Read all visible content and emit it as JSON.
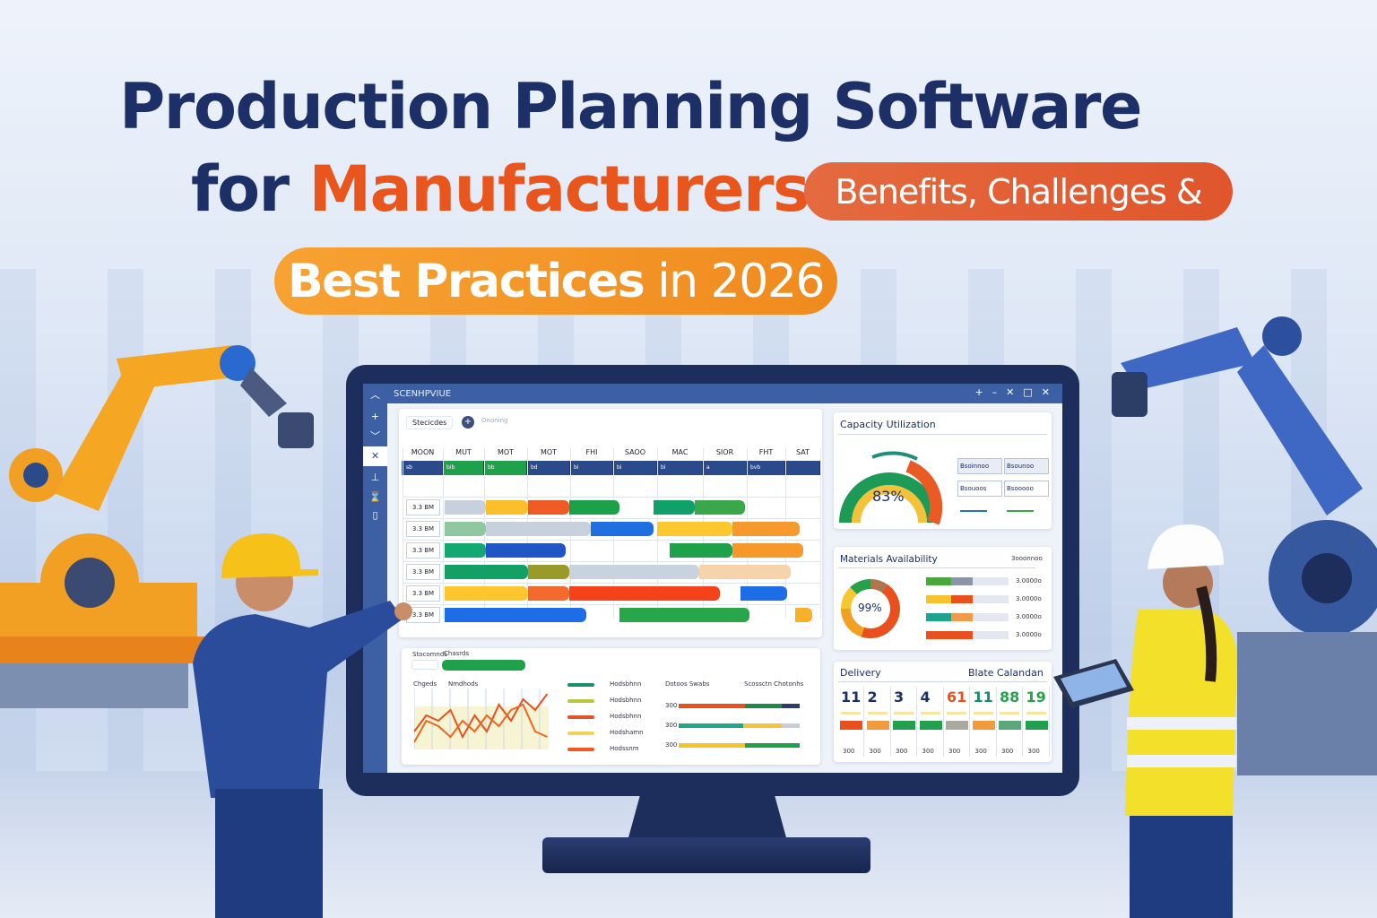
{
  "headline": {
    "line1": "Production Planning Software",
    "line2_prefix": "for ",
    "line2_accent": "Manufacturers",
    "pill1": "Benefits, Challenges &",
    "pill2_bold": "Best Practices",
    "pill2_rest": " in 2026"
  },
  "colors": {
    "navy": "#1c2f66",
    "accent_orange": "#e8561e",
    "pill_red": "#e2603a",
    "pill_orange": "#f39425",
    "window_blue": "#3d5fa3"
  },
  "app": {
    "title": "SCENHPVIUE",
    "window_controls": [
      "+",
      "–",
      "✕",
      "□",
      "✕"
    ],
    "sidebar_icons": [
      "chevron-up-icon",
      "plus-icon",
      "chevron-down-icon",
      "close-icon",
      "tool-icon",
      "hourglass-icon",
      "doc-icon"
    ],
    "toolbar": {
      "tab_label": "Stecicdes",
      "add_icon": "plus-icon",
      "filter_label": "Ononing"
    },
    "gantt": {
      "headers": [
        "MOON",
        "MUT",
        "MOT",
        "MOT",
        "FHI",
        "SAOO",
        "MAC",
        "SIOR",
        "FHT",
        "SAT"
      ],
      "header_row": [
        "sb",
        "bib",
        "bb",
        "bd",
        "bi",
        "bi",
        "bi",
        "a",
        "bvb",
        ""
      ],
      "rows": [
        {
          "label": "3.3 BM",
          "bars": [
            [
              1,
              2,
              "#c7d0dc"
            ],
            [
              2,
              3,
              "#fbbf2c"
            ],
            [
              3,
              4,
              "#f05a24"
            ],
            [
              4,
              5.2,
              "#1aa14a"
            ],
            [
              6,
              7,
              "#12a06a"
            ],
            [
              7,
              8.2,
              "#3aa84a"
            ]
          ]
        },
        {
          "label": "3.3 BM",
          "bars": [
            [
              1,
              2,
              "#8fc7a0"
            ],
            [
              2,
              4.5,
              "#c7d0dc"
            ],
            [
              4.5,
              6,
              "#1f6fe0"
            ],
            [
              6.1,
              7.9,
              "#fcc72f"
            ],
            [
              7.9,
              9.5,
              "#f79a2e"
            ]
          ]
        },
        {
          "label": "3.3 BM",
          "bars": [
            [
              1,
              2,
              "#13a772"
            ],
            [
              2,
              3.9,
              "#2154c4"
            ],
            [
              6.4,
              7.9,
              "#1fa04a"
            ],
            [
              7.9,
              9.6,
              "#f7982b"
            ]
          ]
        },
        {
          "label": "3.3 BM",
          "bars": [
            [
              1,
              3,
              "#13a064"
            ],
            [
              3,
              4,
              "#9a9a2a"
            ],
            [
              4,
              7.1,
              "#c9d3df"
            ],
            [
              7.1,
              9.3,
              "#f6d3aa"
            ]
          ]
        },
        {
          "label": "3.3 BM",
          "bars": [
            [
              1,
              3,
              "#fdc52e"
            ],
            [
              3,
              4,
              "#f26a2c"
            ],
            [
              4,
              7.6,
              "#f5421a"
            ],
            [
              8.1,
              9.2,
              "#1d6de6"
            ]
          ]
        },
        {
          "label": "3.3 BM",
          "bars": [
            [
              1,
              4.4,
              "#1d6de6"
            ],
            [
              5.2,
              8.3,
              "#27a64a"
            ],
            [
              9.4,
              9.8,
              "#f8b02a"
            ]
          ]
        }
      ]
    },
    "bottom": {
      "label1": "Stocomnds",
      "label2": "Chasrds",
      "chart_label1": "Chgeds",
      "chart_label2": "Nmdhods",
      "mini_chart": {
        "type": "line",
        "series": [
          {
            "values": [
              3,
              6,
              5,
              7,
              2,
              6,
              3,
              8,
              5,
              9,
              7,
              10
            ]
          },
          {
            "values": [
              1,
              5,
              4,
              2,
              5,
              3,
              6,
              4,
              7,
              8,
              3,
              2
            ]
          }
        ]
      },
      "legend": [
        {
          "color": "#1c8f6a",
          "label": "Hodsbhnn"
        },
        {
          "color": "#b7c83a",
          "label": "Hodsbhnn"
        },
        {
          "color": "#e0552c",
          "label": "Hodsbhnn"
        },
        {
          "color": "#f2d35a",
          "label": "Hodshamn"
        },
        {
          "color": "#f05a24",
          "label": "Hodssnm"
        }
      ],
      "progress_header": [
        "Dotoos Swabs",
        "Scossctn Chotonhs"
      ],
      "progress": [
        {
          "label": "300",
          "segs": [
            [
              55,
              "#e8501e"
            ],
            [
              30,
              "#1e8a4a"
            ],
            [
              15,
              "#2b3e6b"
            ]
          ]
        },
        {
          "label": "300",
          "segs": [
            [
              53,
              "#20a88a"
            ],
            [
              32,
              "#f4c43a"
            ],
            [
              15,
              "#c9cdd4"
            ]
          ]
        },
        {
          "label": "300",
          "segs": [
            [
              55,
              "#f6c22e"
            ],
            [
              45,
              "#1fa04a"
            ]
          ]
        }
      ]
    },
    "capacity": {
      "title": "Capacity Utilization",
      "value": "83%",
      "value_num": 83,
      "cells": [
        "Bsoinnoo",
        "Bsounoo",
        "Bsouoos",
        "Bsooooo"
      ]
    },
    "materials": {
      "title": "Materials Availability",
      "header_right": "3ooonnoo",
      "value": "99%",
      "value_num": 99,
      "bars": [
        {
          "value": "3.0000o",
          "pct": 56,
          "c1": "#49a83c",
          "c2": "#8a96a8"
        },
        {
          "value": "3.0000o",
          "pct": 56,
          "c1": "#f6c22e",
          "c2": "#e8501e"
        },
        {
          "value": "3.0000o",
          "pct": 56,
          "c1": "#1ea38c",
          "c2": "#f09a4c"
        },
        {
          "value": "3.0000o",
          "pct": 56,
          "c1": "#e8501e",
          "c2": "#e8501e"
        }
      ]
    },
    "delivery": {
      "title": "Delivery",
      "right_title": "Blate Calandan",
      "days": [
        {
          "n": "11",
          "c": "#1c2f66"
        },
        {
          "n": "2",
          "c": "#1c2f66"
        },
        {
          "n": "3",
          "c": "#1c2f66"
        },
        {
          "n": "4",
          "c": "#1c2f66"
        },
        {
          "n": "61",
          "c": "#e8501e"
        },
        {
          "n": "11",
          "c": "#1a8a6a"
        },
        {
          "n": "88",
          "c": "#27a04a"
        },
        {
          "n": "19",
          "c": "#27a04a"
        }
      ],
      "chips": [
        "#e8501e",
        "#f29a3c",
        "#22a04e",
        "#22a04e",
        "#a9a9a0",
        "#f29a3c",
        "#5aa87a",
        "#22a04e"
      ],
      "footer": [
        "300",
        "300",
        "300",
        "300",
        "300",
        "300",
        "300",
        "300"
      ]
    }
  }
}
